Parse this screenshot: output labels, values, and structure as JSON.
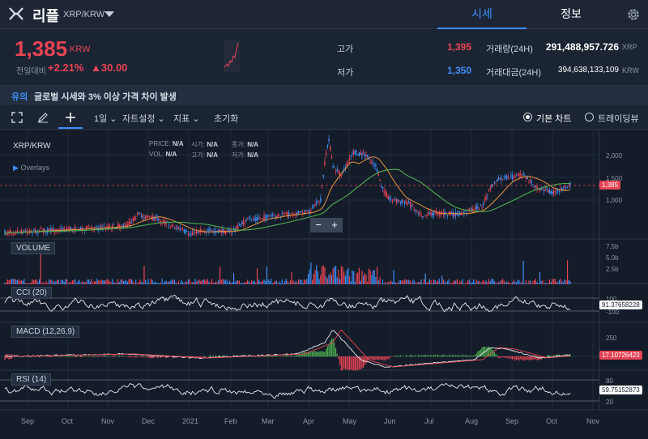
{
  "header": {
    "coin_name": "리플",
    "pair": "XRP/KRW",
    "tab_quote": "시세",
    "tab_info": "정보"
  },
  "summary": {
    "price": "1,385",
    "price_unit": "KRW",
    "change_label": "전일대비",
    "change_pct": "+2.21%",
    "change_amt": "▲30.00",
    "high_label": "고가",
    "high_value": "1,395",
    "low_label": "저가",
    "low_value": "1,350",
    "vol_label": "거래량(24H)",
    "vol_value": "291,488,957.726",
    "vol_unit": "XRP",
    "amount_label": "거래대금(24H)",
    "amount_value": "394,638,133,109",
    "amount_unit": "KRW"
  },
  "notice": {
    "tag": "유의",
    "text": "글로벌 시세와 3% 이상 가격 차이 발생"
  },
  "toolbar": {
    "interval": "1일",
    "chart_settings": "자트설정",
    "indicators": "지표",
    "reset": "초기화",
    "basic_chart": "기본 차트",
    "tradingview": "트레이딩뷰"
  },
  "chart": {
    "pair": "XRP/KRW",
    "overlays": "Overlays",
    "ohlc": {
      "price_label": "PRICE:",
      "vol_label": "VOL:",
      "open_label": "시가:",
      "high_label": "고가:",
      "close_label": "종가:",
      "low_label": "저가:",
      "na": "N/A"
    },
    "zoom_out": "−",
    "zoom_in": "+",
    "price_axis": [
      "2,000",
      "1,500",
      "1,000"
    ],
    "price_tag": "1,385",
    "volume_label": "VOLUME",
    "volume_axis": [
      "7.5b",
      "5.0b",
      "2.5b"
    ],
    "cci_label": "CCI (20)",
    "cci_axis": [
      "100",
      "-100"
    ],
    "cci_value": "91.37658228",
    "macd_label": "MACD (12,26,9)",
    "macd_axis": [
      "250"
    ],
    "macd_value": "17.10726423",
    "rsi_label": "RSI (14)",
    "rsi_axis": [
      "80",
      "20"
    ],
    "rsi_value": "59.75152873",
    "x_axis": [
      "Sep",
      "Oct",
      "Nov",
      "Dec",
      "2021",
      "Feb",
      "Mar",
      "Apr",
      "May",
      "Jun",
      "Jul",
      "Aug",
      "Sep",
      "Oct",
      "Nov"
    ]
  },
  "colors": {
    "up": "#e84455",
    "down": "#3d8ef5",
    "ma_short": "#e8943d",
    "ma_long": "#4caf50",
    "accent": "#3d8ef5"
  }
}
